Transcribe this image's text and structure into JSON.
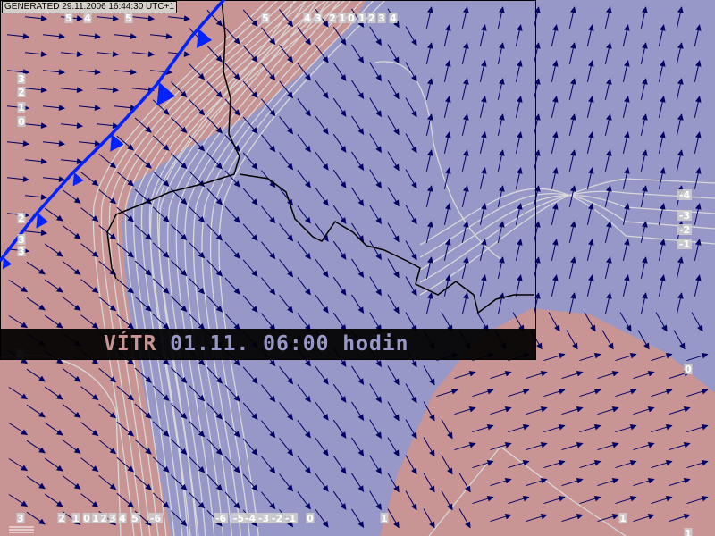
{
  "header": {
    "generated": "GENERATED 29.11.2006 16:44:30 UTC+1"
  },
  "banner": {
    "variable": "VÍTR",
    "datetime": "01.11. 06:00 hodin"
  },
  "colors": {
    "positive_area": "#c89494",
    "negative_area": "#9898c8",
    "contour": "#d8d8d8",
    "wind_arrow": "#000066",
    "cold_front": "#0022ff",
    "border": "#000000",
    "banner_variable": "#c89494",
    "banner_time": "#9898c8"
  },
  "icons": {
    "wind": "wind-arrow",
    "front": "cold-front-line",
    "logo": "chmi-logo"
  },
  "contour_labels": {
    "top": [
      "5",
      "4",
      "5",
      "5",
      "4",
      "3",
      "2",
      "1",
      "0",
      "1",
      "2",
      "3",
      "4"
    ],
    "left": [
      "3",
      "2",
      "1",
      "0",
      "2",
      "3",
      "3"
    ],
    "right": [
      "-4",
      "-3",
      "-2",
      "-1",
      "0"
    ],
    "bottom": [
      "3",
      "2",
      "1",
      "0",
      "1",
      "2",
      "3",
      "4",
      "5",
      "-6",
      "-6",
      "-5",
      "-4",
      "-3",
      "-2",
      "-1",
      "0",
      "1",
      "1",
      "1"
    ],
    "misc": [
      "2"
    ]
  }
}
